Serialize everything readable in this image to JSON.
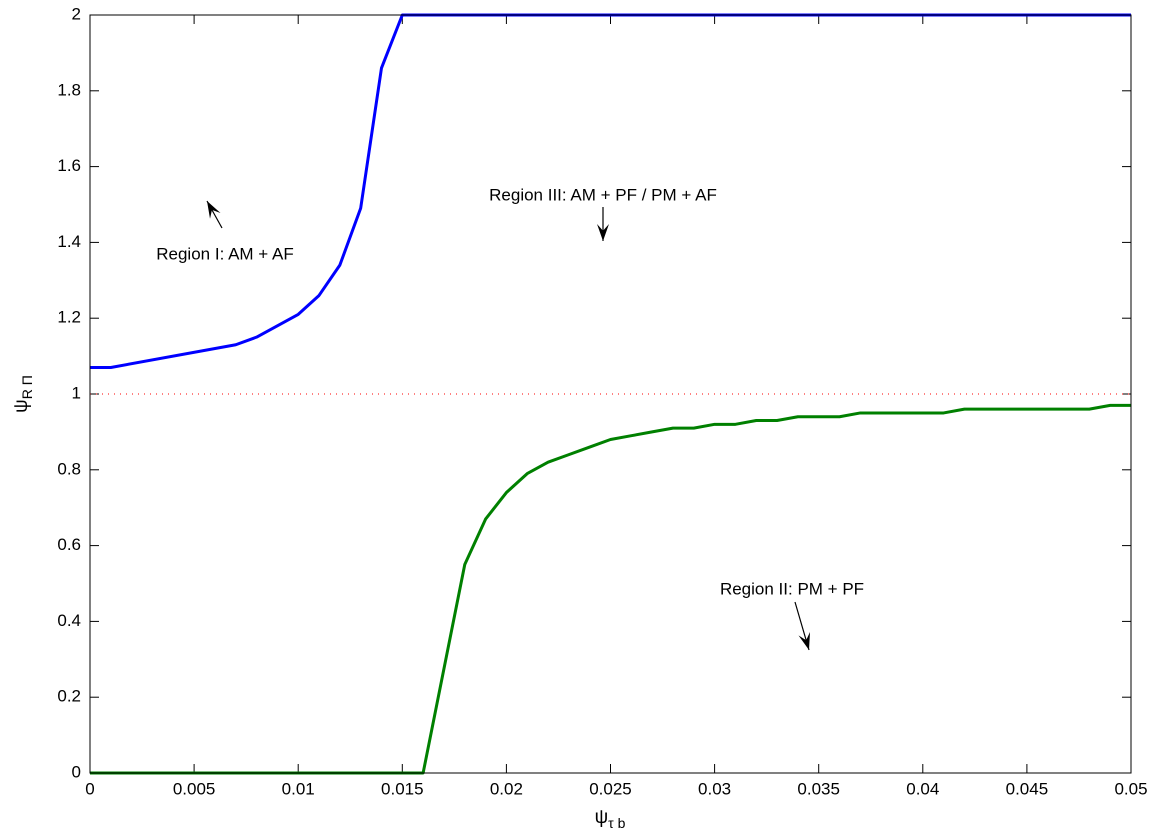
{
  "chart_data": {
    "type": "line",
    "xlabel": {
      "symbol": "ψ",
      "subscript": "τ b"
    },
    "ylabel": {
      "symbol": "ψ",
      "subscript": "R Π"
    },
    "xlim": [
      0,
      0.05
    ],
    "xticks": [
      0,
      0.005,
      0.01,
      0.015,
      0.02,
      0.025,
      0.03,
      0.035,
      0.04,
      0.045,
      0.05
    ],
    "ylim": [
      0,
      2
    ],
    "yticks": [
      0,
      0.2,
      0.4,
      0.6,
      0.8,
      1,
      1.2,
      1.4,
      1.6,
      1.8,
      2
    ],
    "grid": false,
    "series": [
      {
        "color": "#0000ff",
        "style": "solid",
        "x": [
          0,
          0.001,
          0.007,
          0.008,
          0.009,
          0.01,
          0.011,
          0.012,
          0.013,
          0.014,
          0.015,
          0.05
        ],
        "values": [
          1.07,
          1.07,
          1.13,
          1.15,
          1.18,
          1.21,
          1.26,
          1.34,
          1.49,
          1.86,
          2,
          2
        ]
      },
      {
        "color": "#008000",
        "style": "solid",
        "x": [
          0,
          0.016,
          0.018,
          0.019,
          0.02,
          0.021,
          0.022,
          0.023,
          0.024,
          0.025,
          0.026,
          0.027,
          0.028,
          0.029,
          0.03,
          0.031,
          0.032,
          0.033,
          0.034,
          0.035,
          0.036,
          0.037,
          0.038,
          0.039,
          0.04,
          0.041,
          0.042,
          0.043,
          0.044,
          0.045,
          0.046,
          0.047,
          0.048,
          0.049,
          0.05
        ],
        "values": [
          0,
          0,
          0.55,
          0.67,
          0.74,
          0.79,
          0.82,
          0.84,
          0.86,
          0.88,
          0.89,
          0.9,
          0.91,
          0.91,
          0.92,
          0.92,
          0.93,
          0.93,
          0.94,
          0.94,
          0.94,
          0.95,
          0.95,
          0.95,
          0.95,
          0.95,
          0.96,
          0.96,
          0.96,
          0.96,
          0.96,
          0.96,
          0.96,
          0.97,
          0.97
        ]
      },
      {
        "color": "#ff0000",
        "style": "dotted",
        "x": [
          0,
          0.05
        ],
        "values": [
          1,
          1
        ]
      }
    ],
    "annotations": [
      "Region I: AM + AF",
      "Region III: AM + PF / PM + AF",
      "Region II: PM + PF"
    ]
  }
}
